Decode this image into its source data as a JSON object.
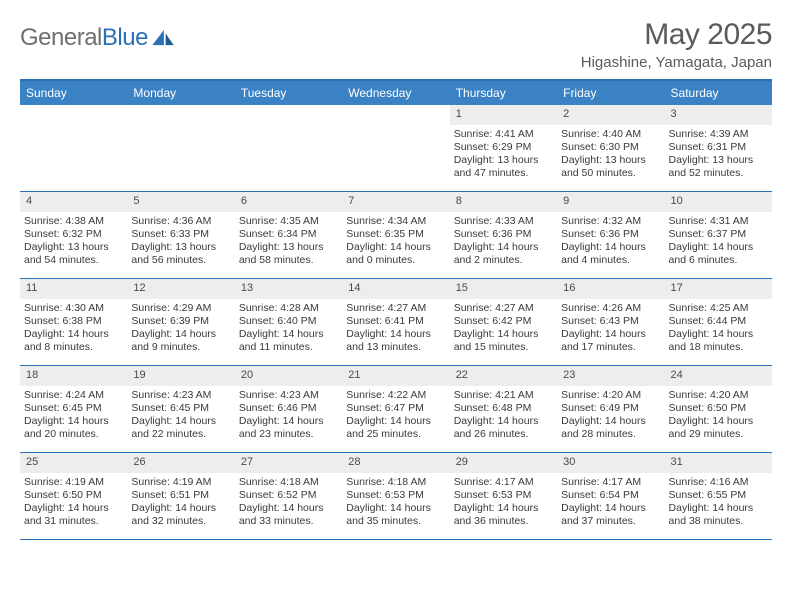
{
  "brand": {
    "name_a": "General",
    "name_b": "Blue"
  },
  "title": {
    "month": "May 2025",
    "location": "Higashine, Yamagata, Japan"
  },
  "colors": {
    "header_bar": "#3b82c4",
    "rule": "#2a71b8",
    "daynum_bg": "#ededed",
    "text": "#3a3a3a",
    "title_text": "#5a5a5a",
    "logo_gray": "#6f6f6f",
    "logo_blue": "#2a71b8",
    "white": "#ffffff"
  },
  "dow": [
    "Sunday",
    "Monday",
    "Tuesday",
    "Wednesday",
    "Thursday",
    "Friday",
    "Saturday"
  ],
  "weeks": [
    [
      null,
      null,
      null,
      null,
      {
        "n": "1",
        "sr": "Sunrise: 4:41 AM",
        "ss": "Sunset: 6:29 PM",
        "d1": "Daylight: 13 hours",
        "d2": "and 47 minutes."
      },
      {
        "n": "2",
        "sr": "Sunrise: 4:40 AM",
        "ss": "Sunset: 6:30 PM",
        "d1": "Daylight: 13 hours",
        "d2": "and 50 minutes."
      },
      {
        "n": "3",
        "sr": "Sunrise: 4:39 AM",
        "ss": "Sunset: 6:31 PM",
        "d1": "Daylight: 13 hours",
        "d2": "and 52 minutes."
      }
    ],
    [
      {
        "n": "4",
        "sr": "Sunrise: 4:38 AM",
        "ss": "Sunset: 6:32 PM",
        "d1": "Daylight: 13 hours",
        "d2": "and 54 minutes."
      },
      {
        "n": "5",
        "sr": "Sunrise: 4:36 AM",
        "ss": "Sunset: 6:33 PM",
        "d1": "Daylight: 13 hours",
        "d2": "and 56 minutes."
      },
      {
        "n": "6",
        "sr": "Sunrise: 4:35 AM",
        "ss": "Sunset: 6:34 PM",
        "d1": "Daylight: 13 hours",
        "d2": "and 58 minutes."
      },
      {
        "n": "7",
        "sr": "Sunrise: 4:34 AM",
        "ss": "Sunset: 6:35 PM",
        "d1": "Daylight: 14 hours",
        "d2": "and 0 minutes."
      },
      {
        "n": "8",
        "sr": "Sunrise: 4:33 AM",
        "ss": "Sunset: 6:36 PM",
        "d1": "Daylight: 14 hours",
        "d2": "and 2 minutes."
      },
      {
        "n": "9",
        "sr": "Sunrise: 4:32 AM",
        "ss": "Sunset: 6:36 PM",
        "d1": "Daylight: 14 hours",
        "d2": "and 4 minutes."
      },
      {
        "n": "10",
        "sr": "Sunrise: 4:31 AM",
        "ss": "Sunset: 6:37 PM",
        "d1": "Daylight: 14 hours",
        "d2": "and 6 minutes."
      }
    ],
    [
      {
        "n": "11",
        "sr": "Sunrise: 4:30 AM",
        "ss": "Sunset: 6:38 PM",
        "d1": "Daylight: 14 hours",
        "d2": "and 8 minutes."
      },
      {
        "n": "12",
        "sr": "Sunrise: 4:29 AM",
        "ss": "Sunset: 6:39 PM",
        "d1": "Daylight: 14 hours",
        "d2": "and 9 minutes."
      },
      {
        "n": "13",
        "sr": "Sunrise: 4:28 AM",
        "ss": "Sunset: 6:40 PM",
        "d1": "Daylight: 14 hours",
        "d2": "and 11 minutes."
      },
      {
        "n": "14",
        "sr": "Sunrise: 4:27 AM",
        "ss": "Sunset: 6:41 PM",
        "d1": "Daylight: 14 hours",
        "d2": "and 13 minutes."
      },
      {
        "n": "15",
        "sr": "Sunrise: 4:27 AM",
        "ss": "Sunset: 6:42 PM",
        "d1": "Daylight: 14 hours",
        "d2": "and 15 minutes."
      },
      {
        "n": "16",
        "sr": "Sunrise: 4:26 AM",
        "ss": "Sunset: 6:43 PM",
        "d1": "Daylight: 14 hours",
        "d2": "and 17 minutes."
      },
      {
        "n": "17",
        "sr": "Sunrise: 4:25 AM",
        "ss": "Sunset: 6:44 PM",
        "d1": "Daylight: 14 hours",
        "d2": "and 18 minutes."
      }
    ],
    [
      {
        "n": "18",
        "sr": "Sunrise: 4:24 AM",
        "ss": "Sunset: 6:45 PM",
        "d1": "Daylight: 14 hours",
        "d2": "and 20 minutes."
      },
      {
        "n": "19",
        "sr": "Sunrise: 4:23 AM",
        "ss": "Sunset: 6:45 PM",
        "d1": "Daylight: 14 hours",
        "d2": "and 22 minutes."
      },
      {
        "n": "20",
        "sr": "Sunrise: 4:23 AM",
        "ss": "Sunset: 6:46 PM",
        "d1": "Daylight: 14 hours",
        "d2": "and 23 minutes."
      },
      {
        "n": "21",
        "sr": "Sunrise: 4:22 AM",
        "ss": "Sunset: 6:47 PM",
        "d1": "Daylight: 14 hours",
        "d2": "and 25 minutes."
      },
      {
        "n": "22",
        "sr": "Sunrise: 4:21 AM",
        "ss": "Sunset: 6:48 PM",
        "d1": "Daylight: 14 hours",
        "d2": "and 26 minutes."
      },
      {
        "n": "23",
        "sr": "Sunrise: 4:20 AM",
        "ss": "Sunset: 6:49 PM",
        "d1": "Daylight: 14 hours",
        "d2": "and 28 minutes."
      },
      {
        "n": "24",
        "sr": "Sunrise: 4:20 AM",
        "ss": "Sunset: 6:50 PM",
        "d1": "Daylight: 14 hours",
        "d2": "and 29 minutes."
      }
    ],
    [
      {
        "n": "25",
        "sr": "Sunrise: 4:19 AM",
        "ss": "Sunset: 6:50 PM",
        "d1": "Daylight: 14 hours",
        "d2": "and 31 minutes."
      },
      {
        "n": "26",
        "sr": "Sunrise: 4:19 AM",
        "ss": "Sunset: 6:51 PM",
        "d1": "Daylight: 14 hours",
        "d2": "and 32 minutes."
      },
      {
        "n": "27",
        "sr": "Sunrise: 4:18 AM",
        "ss": "Sunset: 6:52 PM",
        "d1": "Daylight: 14 hours",
        "d2": "and 33 minutes."
      },
      {
        "n": "28",
        "sr": "Sunrise: 4:18 AM",
        "ss": "Sunset: 6:53 PM",
        "d1": "Daylight: 14 hours",
        "d2": "and 35 minutes."
      },
      {
        "n": "29",
        "sr": "Sunrise: 4:17 AM",
        "ss": "Sunset: 6:53 PM",
        "d1": "Daylight: 14 hours",
        "d2": "and 36 minutes."
      },
      {
        "n": "30",
        "sr": "Sunrise: 4:17 AM",
        "ss": "Sunset: 6:54 PM",
        "d1": "Daylight: 14 hours",
        "d2": "and 37 minutes."
      },
      {
        "n": "31",
        "sr": "Sunrise: 4:16 AM",
        "ss": "Sunset: 6:55 PM",
        "d1": "Daylight: 14 hours",
        "d2": "and 38 minutes."
      }
    ]
  ]
}
